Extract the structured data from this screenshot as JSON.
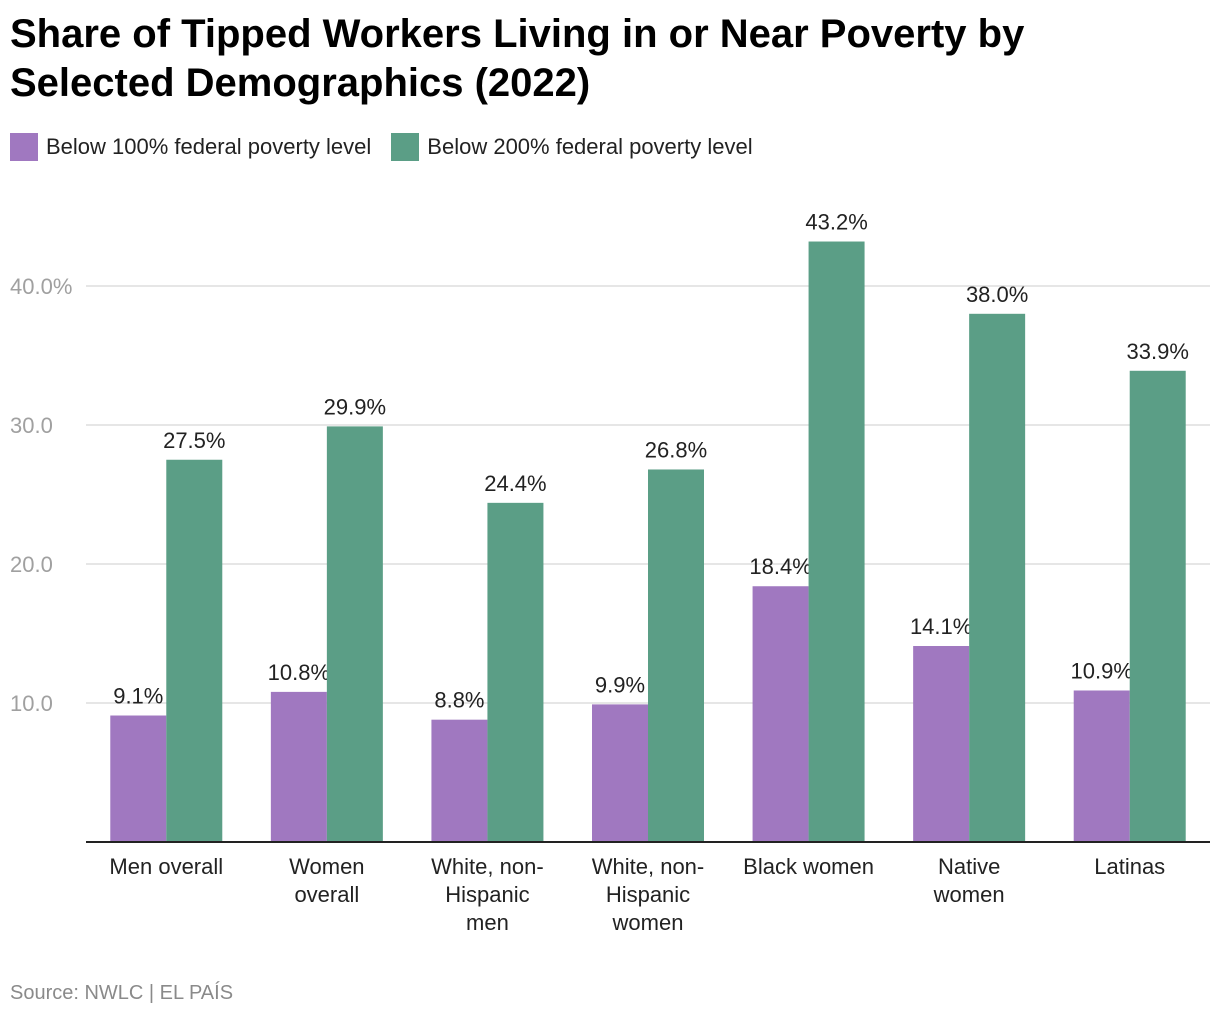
{
  "title": "Share of Tipped Workers Living in or Near Poverty by Selected Demographics (2022)",
  "source": "Source: NWLC | EL PAÍS",
  "chart_data": {
    "type": "bar",
    "categories": [
      [
        "Men overall"
      ],
      [
        "Women",
        "overall"
      ],
      [
        "White, non-",
        "Hispanic",
        "men"
      ],
      [
        "White, non-",
        "Hispanic",
        "women"
      ],
      [
        "Black women"
      ],
      [
        "Native",
        "women"
      ],
      [
        "Latinas"
      ]
    ],
    "series": [
      {
        "name": "Below 100% federal poverty level",
        "color": "#a078c0",
        "values": [
          9.1,
          10.8,
          8.8,
          9.9,
          18.4,
          14.1,
          10.9
        ],
        "labels": [
          "9.1%",
          "10.8%",
          "8.8%",
          "9.9%",
          "18.4%",
          "14.1%",
          "10.9%"
        ]
      },
      {
        "name": "Below 200% federal poverty level",
        "color": "#5b9e86",
        "values": [
          27.5,
          29.9,
          24.4,
          26.8,
          43.2,
          38.0,
          33.9
        ],
        "labels": [
          "27.5%",
          "29.9%",
          "24.4%",
          "26.8%",
          "43.2%",
          "38.0%",
          "33.9%"
        ]
      }
    ],
    "yticks": [
      10,
      20,
      30,
      40
    ],
    "ytick_labels": [
      "10.0",
      "20.0",
      "30.0",
      "40.0%"
    ],
    "ylim": [
      0,
      46
    ],
    "grid": true,
    "legend_position": "top-left"
  }
}
